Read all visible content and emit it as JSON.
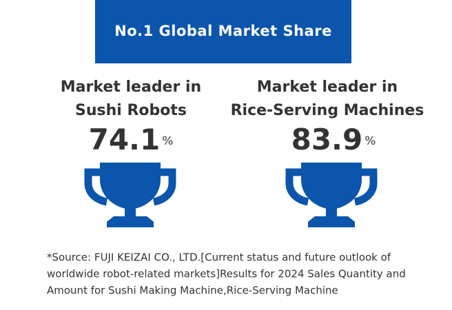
{
  "header": {
    "title": "No.1 Global Market Share"
  },
  "items": [
    {
      "label_lines": [
        "Market leader in",
        "Sushi Robots"
      ],
      "value": 74.1,
      "unit": "%"
    },
    {
      "label_lines": [
        "Market leader in",
        "Rice-Serving Machines"
      ],
      "value": 83.9,
      "unit": "%"
    }
  ],
  "source_lines": [
    "*Source: FUJI KEIZAI CO., LTD.[Current status and future outlook of",
    "worldwide robot-related markets]Results for 2024 Sales Quantity and",
    "Amount for Sushi Making Machine,Rice-Serving Machine"
  ]
}
